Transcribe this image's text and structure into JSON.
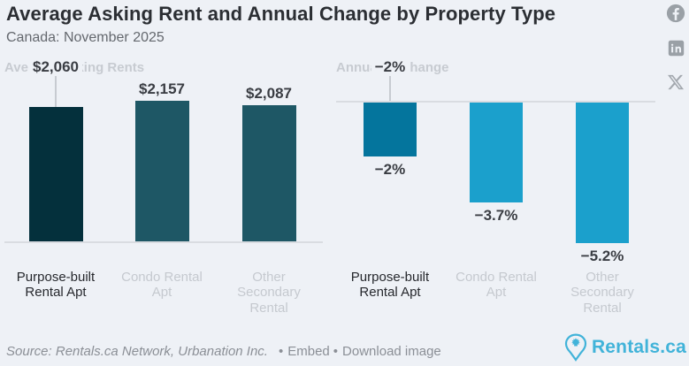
{
  "header": {
    "title": "Average Asking Rent and Annual Change by Property Type",
    "subtitle": "Canada: November 2025"
  },
  "social": {
    "facebook": "Facebook",
    "linkedin": "LinkedIn",
    "x": "X"
  },
  "chart_data": [
    {
      "type": "bar",
      "title": "Average Asking Rents",
      "categories": [
        "Purpose-built Rental Apt",
        "Condo Rental Apt",
        "Other Secondary Rental"
      ],
      "values": [
        2060,
        2157,
        2087
      ],
      "value_labels": [
        "$2,060",
        "$2,157",
        "$2,087"
      ],
      "bar_colors": [
        "#04303c",
        "#1e5765",
        "#1e5765"
      ],
      "highlight_index": 0,
      "xlabel": "",
      "ylabel": "",
      "ylim": [
        0,
        2200
      ],
      "grid": false,
      "legend": false
    },
    {
      "type": "bar",
      "title": "Annual % Change",
      "categories": [
        "Purpose-built Rental Apt",
        "Condo Rental Apt",
        "Other Secondary Rental"
      ],
      "values": [
        -2,
        -3.7,
        -5.2
      ],
      "value_labels": [
        "−2%",
        "−3.7%",
        "−5.2%"
      ],
      "bar_colors": [
        "#04759d",
        "#1ba0cc",
        "#1ba0cc"
      ],
      "highlight_index": 0,
      "xlabel": "",
      "ylabel": "",
      "ylim": [
        -5.5,
        0
      ],
      "grid": false,
      "legend": false
    }
  ],
  "footer": {
    "source": "Source: Rentals.ca Network, Urbanation Inc.",
    "bullet": "•",
    "embed": "Embed",
    "download": "Download image",
    "logo_text": "Rentals.ca"
  },
  "colors": {
    "background": "#eef1f6",
    "accent_blue": "#41b3d9",
    "axis_line": "#d9dce1",
    "muted_label": "#c5c9cf",
    "dark_text": "#2b2e33"
  }
}
